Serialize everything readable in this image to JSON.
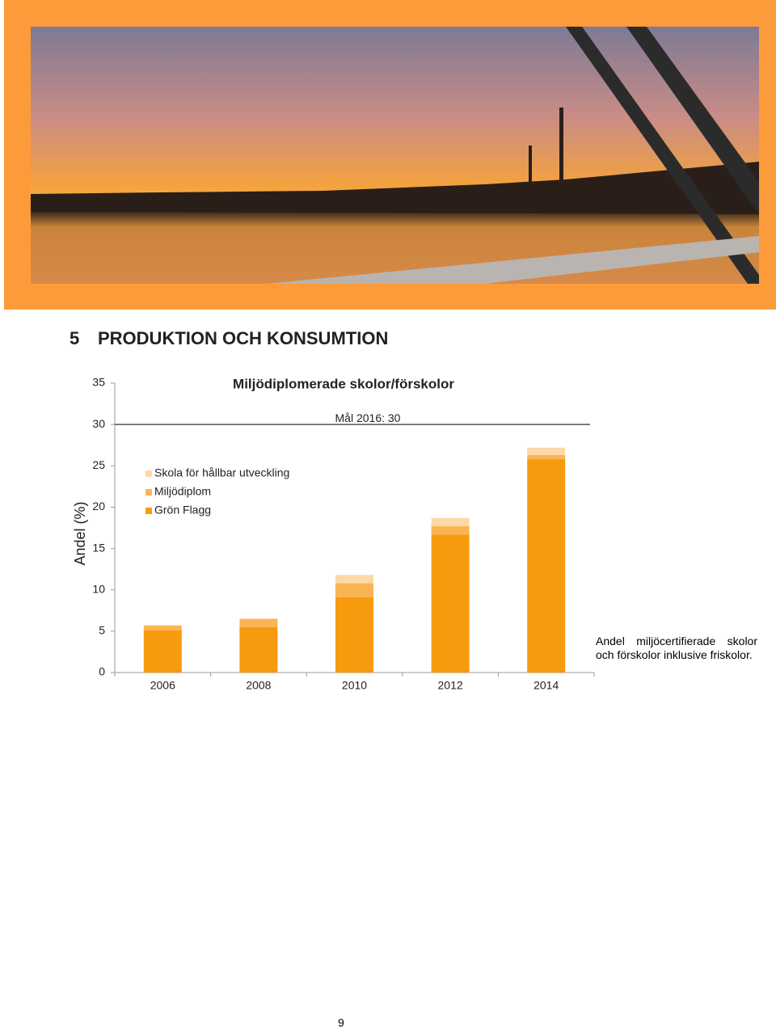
{
  "heading": {
    "number": "5",
    "title": "PRODUKTION OCH KONSUMTION"
  },
  "chart_data": {
    "type": "stacked_bar",
    "title": "Miljödiplomerade skolor/förskolor",
    "y_label": "Andel (%)",
    "categories": [
      "2006",
      "2008",
      "2010",
      "2012",
      "2014"
    ],
    "series": [
      {
        "name": "Grön Flagg",
        "color": "#f79a0e",
        "values": [
          5.1,
          5.5,
          9.1,
          16.7,
          25.8
        ]
      },
      {
        "name": "Miljödiplom",
        "color": "#fab553",
        "values": [
          0.6,
          1.0,
          1.7,
          1.0,
          0.5
        ]
      },
      {
        "name": "Skola för hållbar utveckling",
        "color": "#fcd9a8",
        "values": [
          0,
          0,
          1.0,
          1.0,
          0.9
        ]
      }
    ],
    "ylim": [
      0,
      35
    ],
    "yticks": [
      0,
      5,
      10,
      15,
      20,
      25,
      30,
      35
    ],
    "reference_line": {
      "value": 30,
      "label": "Mål 2016: 30"
    }
  },
  "caption": "Andel miljöcertifierade skolor och förskolor inklusive fri­skolor.",
  "page_number": "9"
}
